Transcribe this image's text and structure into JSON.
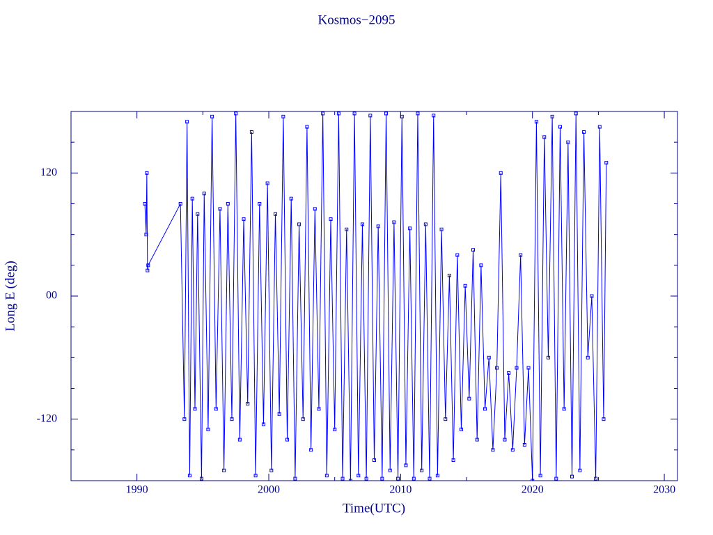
{
  "chart_data": {
    "type": "line",
    "title": "Kosmos−2095",
    "x_label": "Time(UTC)",
    "y_label": "Long E (deg)",
    "xlim": [
      1985,
      2031
    ],
    "ylim": [
      -180,
      180
    ],
    "xticks": [
      1990,
      2000,
      2010,
      2020,
      2030
    ],
    "xticks_minor": [
      1995,
      2005,
      2015,
      2025
    ],
    "yticks": [
      -120,
      {
        "value": 0,
        "label": "00"
      },
      120
    ],
    "yticks_minor": [
      -150,
      -90,
      -60,
      -30,
      30,
      60,
      90,
      150
    ],
    "axis_color": "#00008b",
    "series": [
      {
        "color": "#0000ff",
        "x": [
          1990.6,
          1990.7,
          1990.75,
          1990.8,
          1990.85,
          1993.3,
          1993.6,
          1993.8,
          1994.0,
          1994.2,
          1994.4,
          1994.6,
          1994.9,
          1995.1,
          1995.4,
          1995.7,
          1996.0,
          1996.3,
          1996.6,
          1996.9,
          1997.2,
          1997.5,
          1997.8,
          1998.1,
          1998.4,
          1998.7,
          1999.0,
          1999.3,
          1999.6,
          1999.9,
          2000.2,
          2000.5,
          2000.8,
          2001.1,
          2001.4,
          2001.7,
          2002.0,
          2002.3,
          2002.6,
          2002.9,
          2003.2,
          2003.5,
          2003.8,
          2004.1,
          2004.4,
          2004.7,
          2005.0,
          2005.3,
          2005.6,
          2005.9,
          2006.2,
          2006.5,
          2006.8,
          2007.1,
          2007.4,
          2007.7,
          2008.0,
          2008.3,
          2008.6,
          2008.9,
          2009.2,
          2009.5,
          2009.8,
          2010.1,
          2010.4,
          2010.7,
          2011.0,
          2011.3,
          2011.6,
          2011.9,
          2012.2,
          2012.5,
          2012.8,
          2013.1,
          2013.4,
          2013.7,
          2014.0,
          2014.3,
          2014.6,
          2014.9,
          2015.2,
          2015.5,
          2015.8,
          2016.1,
          2016.4,
          2016.7,
          2017.0,
          2017.3,
          2017.6,
          2017.9,
          2018.2,
          2018.5,
          2018.8,
          2019.1,
          2019.4,
          2019.7,
          2020.0,
          2020.3,
          2020.6,
          2020.9,
          2021.2,
          2021.5,
          2021.8,
          2022.1,
          2022.4,
          2022.7,
          2023.0,
          2023.3,
          2023.6,
          2023.9,
          2024.2,
          2024.5,
          2024.8,
          2025.1,
          2025.4,
          2025.6
        ],
        "values": [
          90,
          60,
          120,
          25,
          30,
          90,
          -120,
          170,
          -175,
          95,
          -110,
          80,
          -178,
          100,
          -130,
          175,
          -110,
          85,
          -170,
          90,
          -120,
          178,
          -140,
          75,
          -105,
          160,
          -175,
          90,
          -125,
          110,
          -170,
          80,
          -115,
          175,
          -140,
          95,
          -178,
          70,
          -120,
          165,
          -150,
          85,
          -110,
          178,
          -175,
          75,
          -130,
          178,
          -178,
          65,
          -180,
          178,
          -175,
          70,
          -178,
          176,
          -160,
          68,
          -178,
          178,
          -170,
          72,
          -178,
          175,
          -165,
          66,
          -178,
          178,
          -170,
          70,
          -178,
          176,
          -175,
          65,
          -120,
          20,
          -160,
          40,
          -130,
          10,
          -100,
          45,
          -140,
          30,
          -110,
          -60,
          -150,
          -70,
          120,
          -140,
          -75,
          -150,
          -70,
          40,
          -145,
          -70,
          -180,
          170,
          -175,
          155,
          -60,
          175,
          -178,
          165,
          -110,
          150,
          -176,
          178,
          -170,
          160,
          -60,
          0,
          -178,
          165,
          -120,
          130
        ]
      }
    ]
  }
}
